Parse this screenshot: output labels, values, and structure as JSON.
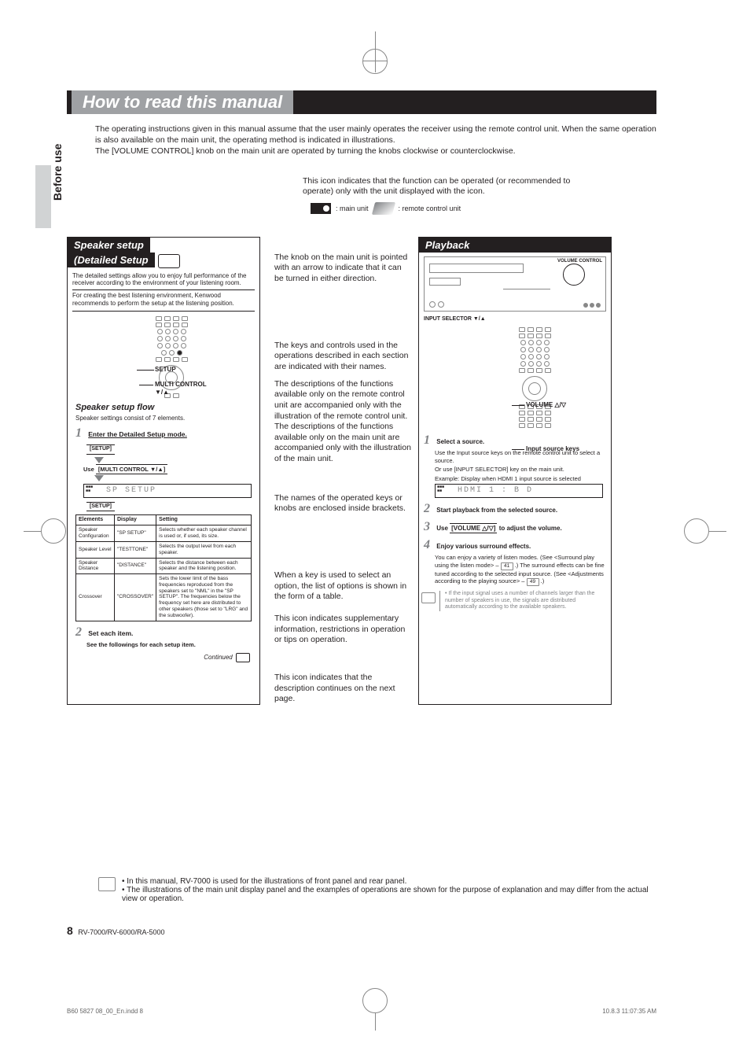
{
  "title": "How to read this manual",
  "intro_lines": [
    "The operating instructions given in this manual assume that the user mainly operates the receiver using the remote control unit. When the same operation is also available on the main unit, the operating method is indicated in illustrations.",
    "The [VOLUME CONTROL] knob on the main unit are operated by turning the knobs clockwise or counterclockwise."
  ],
  "sidebar_label": "Before use",
  "ann": {
    "icon_meaning": "This icon indicates that the function can be operated (or recommended to operate) only with the unit displayed with the icon.",
    "main_unit": ": main unit",
    "remote_unit": ": remote control unit",
    "knob": "The knob on the main unit is pointed with an arrow to indicate that it can be turned in either direction.",
    "keys": "The keys and controls used in the operations described in each section are indicated with their names.",
    "keys2": "The descriptions of the functions available only on the remote control unit are accompanied only with the illustration of the remote control unit. The descriptions of the functions available only on the main unit are accompanied only with the illustration of the main unit.",
    "brackets": "The names of the operated keys or knobs are enclosed inside brackets.",
    "table": "When a key is used to select an option, the list of options is shown in the form of a table.",
    "supp": "This icon indicates supplementary information, restrictions in operation or tips on operation.",
    "continued": "This icon indicates that the description continues on the next page."
  },
  "speaker_setup": {
    "title1": "Speaker setup",
    "title2": "(Detailed Setup",
    "desc": "The detailed settings allow you to enjoy full performance of the receiver according to the environment of your listening room.",
    "note": "For creating the best listening environment, Kenwood recommends to perform the setup at the listening position.",
    "callouts": {
      "setup": "SETUP",
      "multi": "MULTI CONTROL",
      "arrows": "▼/▲"
    },
    "flow_title": "Speaker setup flow",
    "flow_sub": "Speaker settings consist of 7 elements.",
    "step1": {
      "num": "1",
      "text": "Enter the Detailed Setup mode."
    },
    "btns": {
      "setup": "[SETUP]",
      "multi": "[MULTI CONTROL ▼/▲]"
    },
    "use_label": "Use",
    "display_text": "SP  SETUP",
    "table_headers": [
      "Elements",
      "Display",
      "Setting"
    ],
    "table_rows": [
      [
        "Speaker Configuration",
        "\"SP SETUP\"",
        "Selects whether each speaker channel is used or, if used, its size."
      ],
      [
        "Speaker Level",
        "\"TESTTONE\"",
        "Selects the output level from each speaker."
      ],
      [
        "Speaker Distance",
        "\"DISTANCE\"",
        "Selects the distance between each speaker and the listening position."
      ],
      [
        "Crossover",
        "\"CROSSOVER\"",
        "Sets the lower limit of the bass frequencies reproduced from the speakers set to \"NML\" in the \"SP SETUP\". The frequencies below the frequency set here are distributed to other speakers (those set to \"LRG\" and the subwoofer)."
      ]
    ],
    "step2": {
      "num": "2",
      "text": "Set each item."
    },
    "see": "See the followings for each setup item.",
    "continued": "Continued"
  },
  "playback": {
    "title": "Playback",
    "vol_control": "VOLUME CONTROL",
    "sel_label": "INPUT SELECTOR ▼/▲",
    "vol_arrows": "VOLUME △/▽",
    "input_keys": "Input source keys",
    "step1": {
      "num": "1",
      "text": "Select a source.",
      "d1": "Use the Input source keys on the remote control unit to select a source.",
      "d2": "Or use [INPUT SELECTOR] key on the main unit.",
      "d3": "Example: Display when HDMI 1 input source is selected"
    },
    "display_text": "HDMI 1  : B D",
    "step2": {
      "num": "2",
      "text": "Start playback from the selected source."
    },
    "step3": {
      "num": "3",
      "text_pre": "Use ",
      "key": "[VOLUME △/▽]",
      "text_post": " to adjust the volume."
    },
    "step4": {
      "num": "4",
      "text": "Enjoy various surround effects.",
      "d1": "You can enjoy a variety of listen modes. (See <Surround play using the listen mode> –",
      "pg1": "41",
      "d1b": ".)",
      "d2": "The surround effects can be fine tuned according to the selected input source. (See <Adjustments according to the playing source> –",
      "pg2": "49",
      "d2b": ".)"
    },
    "note": "If the input signal uses a number of channels larger than the number of speakers in use, the signals are distributed automatically according to the available speakers."
  },
  "footer_notes": [
    "In this manual, RV-7000 is used for the illustrations of front panel and rear panel.",
    "The illustrations of the main unit display panel and the examples of operations are shown for the purpose of explanation and may differ from the actual view or operation."
  ],
  "pagenum": "8",
  "models": "RV-7000/RV-6000/RA-5000",
  "indd": {
    "file": "B60 5827 08_00_En.indd   8",
    "timestamp": "10.8.3   11:07:35 AM"
  },
  "colors": {
    "black": "#231f20",
    "grey_title": "#9fa1a4",
    "grey_num": "#808285",
    "grey_tab": "#d1d3d4"
  }
}
